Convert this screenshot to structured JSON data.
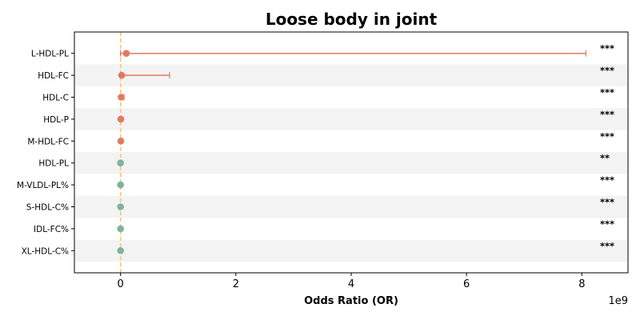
{
  "chart_data": {
    "type": "forest",
    "title": "Loose body in joint",
    "xlabel": "Odds Ratio (OR)",
    "x_offset_label": "1e9",
    "x_unit_multiplier": 1000000000,
    "xlim": [
      -0.8,
      8.8
    ],
    "xticks": [
      0,
      2,
      4,
      6,
      8
    ],
    "xtick_labels": [
      "0",
      "2",
      "4",
      "6",
      "8"
    ],
    "reference_line": 0,
    "reference_line_color": "#f5c27a",
    "stripe_color": "#f3f3f3",
    "colors": {
      "risk": "#e07b61",
      "protective": "#7fb39e"
    },
    "rows": [
      {
        "label": "L-HDL-PL",
        "or": 0.1,
        "ci_low": 0.0,
        "ci_high": 8.07,
        "sig": "***",
        "group": "risk"
      },
      {
        "label": "HDL-FC",
        "or": 0.02,
        "ci_low": 0.0,
        "ci_high": 0.85,
        "sig": "***",
        "group": "risk"
      },
      {
        "label": "HDL-C",
        "or": 0.01,
        "ci_low": 0.0,
        "ci_high": 0.06,
        "sig": "***",
        "group": "risk"
      },
      {
        "label": "HDL-P",
        "or": 0.005,
        "ci_low": 0.0,
        "ci_high": 0.02,
        "sig": "***",
        "group": "risk"
      },
      {
        "label": "M-HDL-FC",
        "or": 0.005,
        "ci_low": 0.0,
        "ci_high": 0.02,
        "sig": "***",
        "group": "risk"
      },
      {
        "label": "HDL-PL",
        "or": 0.0,
        "ci_low": 0.0,
        "ci_high": 0.0,
        "sig": "**",
        "group": "protective"
      },
      {
        "label": "M-VLDL-PL%",
        "or": 0.0,
        "ci_low": 0.0,
        "ci_high": 0.0,
        "sig": "***",
        "group": "protective"
      },
      {
        "label": "S-HDL-C%",
        "or": 0.0,
        "ci_low": 0.0,
        "ci_high": 0.0,
        "sig": "***",
        "group": "protective"
      },
      {
        "label": "IDL-FC%",
        "or": 0.0,
        "ci_low": 0.0,
        "ci_high": 0.0,
        "sig": "***",
        "group": "protective"
      },
      {
        "label": "XL-HDL-C%",
        "or": 0.0,
        "ci_low": 0.0,
        "ci_high": 0.0,
        "sig": "***",
        "group": "protective"
      }
    ]
  }
}
